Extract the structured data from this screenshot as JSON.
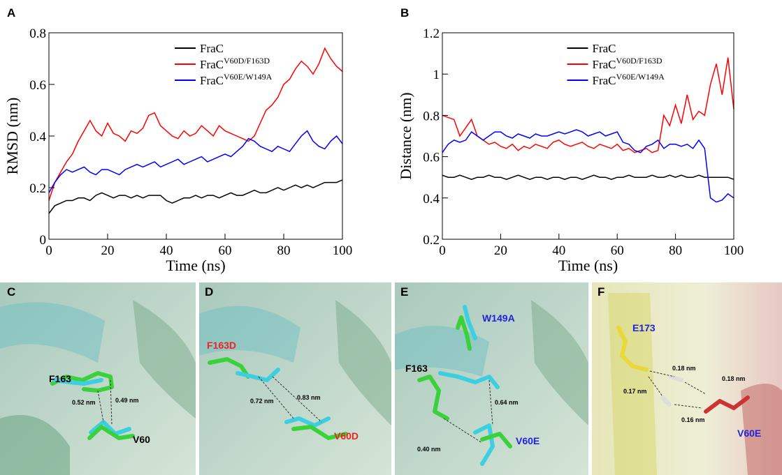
{
  "chart_data": [
    {
      "type": "line",
      "label": "A",
      "xlabel": "Time (ns)",
      "ylabel": "RMSD (nm)",
      "legend": "upper center",
      "xlim": [
        0,
        100
      ],
      "xticks": [
        0,
        20,
        40,
        60,
        80,
        100
      ],
      "ylim": [
        0,
        0.8
      ],
      "yticks": [
        0,
        0.2,
        0.4,
        0.6,
        0.8
      ],
      "x": [
        0,
        2,
        4,
        6,
        8,
        10,
        12,
        14,
        16,
        18,
        20,
        22,
        24,
        26,
        28,
        30,
        32,
        34,
        36,
        38,
        40,
        42,
        44,
        46,
        48,
        50,
        52,
        54,
        56,
        58,
        60,
        62,
        64,
        66,
        68,
        70,
        72,
        74,
        76,
        78,
        80,
        82,
        84,
        86,
        88,
        90,
        92,
        94,
        96,
        98,
        100
      ],
      "series": [
        {
          "name": "FraC",
          "color": "#000000",
          "values": [
            0.1,
            0.13,
            0.14,
            0.15,
            0.15,
            0.16,
            0.16,
            0.15,
            0.17,
            0.18,
            0.17,
            0.16,
            0.17,
            0.17,
            0.16,
            0.17,
            0.16,
            0.17,
            0.17,
            0.17,
            0.15,
            0.14,
            0.15,
            0.16,
            0.16,
            0.17,
            0.16,
            0.17,
            0.17,
            0.16,
            0.17,
            0.18,
            0.17,
            0.17,
            0.18,
            0.19,
            0.18,
            0.18,
            0.19,
            0.2,
            0.19,
            0.2,
            0.21,
            0.2,
            0.21,
            0.2,
            0.21,
            0.22,
            0.22,
            0.22,
            0.23
          ]
        },
        {
          "name": "FraC",
          "superscript": "V60D/F163D",
          "color": "#ff0000",
          "values": [
            0.15,
            0.22,
            0.26,
            0.3,
            0.33,
            0.38,
            0.42,
            0.46,
            0.42,
            0.4,
            0.45,
            0.41,
            0.4,
            0.38,
            0.42,
            0.41,
            0.43,
            0.48,
            0.49,
            0.44,
            0.42,
            0.4,
            0.39,
            0.42,
            0.4,
            0.41,
            0.44,
            0.42,
            0.4,
            0.44,
            0.42,
            0.41,
            0.4,
            0.39,
            0.38,
            0.4,
            0.45,
            0.5,
            0.52,
            0.55,
            0.6,
            0.62,
            0.66,
            0.69,
            0.67,
            0.64,
            0.68,
            0.74,
            0.7,
            0.67,
            0.65
          ]
        },
        {
          "name": "FraC",
          "superscript": "V60E/W149A",
          "color": "#0000ff",
          "values": [
            0.18,
            0.22,
            0.25,
            0.27,
            0.26,
            0.27,
            0.28,
            0.26,
            0.25,
            0.27,
            0.27,
            0.26,
            0.25,
            0.27,
            0.28,
            0.29,
            0.28,
            0.29,
            0.3,
            0.28,
            0.29,
            0.3,
            0.31,
            0.29,
            0.3,
            0.31,
            0.32,
            0.3,
            0.31,
            0.32,
            0.33,
            0.32,
            0.34,
            0.36,
            0.39,
            0.38,
            0.36,
            0.35,
            0.34,
            0.36,
            0.35,
            0.34,
            0.37,
            0.4,
            0.42,
            0.38,
            0.36,
            0.35,
            0.38,
            0.4,
            0.37
          ]
        }
      ]
    },
    {
      "type": "line",
      "label": "B",
      "xlabel": "Time (ns)",
      "ylabel": "Distance (nm)",
      "legend": "upper center",
      "xlim": [
        0,
        100
      ],
      "xticks": [
        0,
        20,
        40,
        60,
        80,
        100
      ],
      "ylim": [
        0.2,
        1.2
      ],
      "yticks": [
        0.2,
        0.4,
        0.6,
        0.8,
        1,
        1.2
      ],
      "x": [
        0,
        2,
        4,
        6,
        8,
        10,
        12,
        14,
        16,
        18,
        20,
        22,
        24,
        26,
        28,
        30,
        32,
        34,
        36,
        38,
        40,
        42,
        44,
        46,
        48,
        50,
        52,
        54,
        56,
        58,
        60,
        62,
        64,
        66,
        68,
        70,
        72,
        74,
        76,
        78,
        80,
        82,
        84,
        86,
        88,
        90,
        92,
        94,
        96,
        98,
        100
      ],
      "series": [
        {
          "name": "FraC",
          "color": "#000000",
          "values": [
            0.51,
            0.5,
            0.5,
            0.51,
            0.5,
            0.49,
            0.5,
            0.5,
            0.51,
            0.5,
            0.5,
            0.49,
            0.5,
            0.51,
            0.5,
            0.49,
            0.5,
            0.5,
            0.49,
            0.5,
            0.5,
            0.49,
            0.5,
            0.5,
            0.49,
            0.5,
            0.51,
            0.5,
            0.5,
            0.49,
            0.5,
            0.5,
            0.51,
            0.5,
            0.5,
            0.5,
            0.51,
            0.5,
            0.5,
            0.51,
            0.5,
            0.51,
            0.5,
            0.5,
            0.51,
            0.5,
            0.5,
            0.5,
            0.5,
            0.5,
            0.49
          ]
        },
        {
          "name": "FraC",
          "superscript": "V60D/F163D",
          "color": "#ff0000",
          "values": [
            0.8,
            0.79,
            0.78,
            0.7,
            0.74,
            0.78,
            0.7,
            0.68,
            0.66,
            0.67,
            0.65,
            0.64,
            0.66,
            0.63,
            0.65,
            0.64,
            0.66,
            0.65,
            0.64,
            0.67,
            0.68,
            0.66,
            0.65,
            0.66,
            0.67,
            0.65,
            0.64,
            0.66,
            0.65,
            0.64,
            0.66,
            0.63,
            0.64,
            0.62,
            0.63,
            0.64,
            0.62,
            0.63,
            0.8,
            0.75,
            0.85,
            0.76,
            0.9,
            0.78,
            0.82,
            0.8,
            0.95,
            1.05,
            0.9,
            1.08,
            0.83
          ]
        },
        {
          "name": "FraC",
          "superscript": "V60E/W149A",
          "color": "#0000ff",
          "values": [
            0.62,
            0.66,
            0.68,
            0.67,
            0.68,
            0.72,
            0.7,
            0.68,
            0.7,
            0.72,
            0.72,
            0.7,
            0.69,
            0.71,
            0.7,
            0.69,
            0.71,
            0.7,
            0.7,
            0.71,
            0.72,
            0.71,
            0.72,
            0.73,
            0.72,
            0.7,
            0.71,
            0.72,
            0.7,
            0.71,
            0.72,
            0.67,
            0.66,
            0.63,
            0.62,
            0.65,
            0.66,
            0.68,
            0.64,
            0.66,
            0.66,
            0.65,
            0.66,
            0.64,
            0.68,
            0.64,
            0.4,
            0.38,
            0.39,
            0.42,
            0.4
          ]
        }
      ]
    }
  ],
  "panels": [
    {
      "label": "C",
      "annotations": [
        "F163",
        "0.52 nm",
        "0.49 nm",
        "V60"
      ]
    },
    {
      "label": "D",
      "annotations": [
        "F163D",
        "0.72 nm",
        "0.83 nm",
        "V60D"
      ]
    },
    {
      "label": "E",
      "annotations": [
        "W149A",
        "F163",
        "0.64 nm",
        "0.40 nm",
        "V60E"
      ]
    },
    {
      "label": "F",
      "annotations": [
        "E173",
        "0.18 nm",
        "0.18 nm",
        "0.17 nm",
        "0.16 nm",
        "V60E"
      ]
    }
  ]
}
